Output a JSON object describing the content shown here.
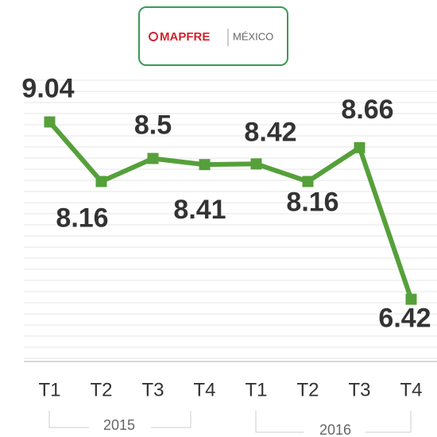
{
  "logo": {
    "brand": "MAPFRE",
    "country": "MÉXICO"
  },
  "chart_data": {
    "type": "line",
    "categories": [
      "T1",
      "T2",
      "T3",
      "T4",
      "T1",
      "T2",
      "T3",
      "T4"
    ],
    "groups": [
      "2015",
      "2016"
    ],
    "values": [
      9.04,
      8.16,
      8.5,
      8.41,
      8.42,
      8.16,
      8.66,
      6.42
    ],
    "color": "#55a03a",
    "ylim": [
      5.5,
      9.75
    ]
  }
}
